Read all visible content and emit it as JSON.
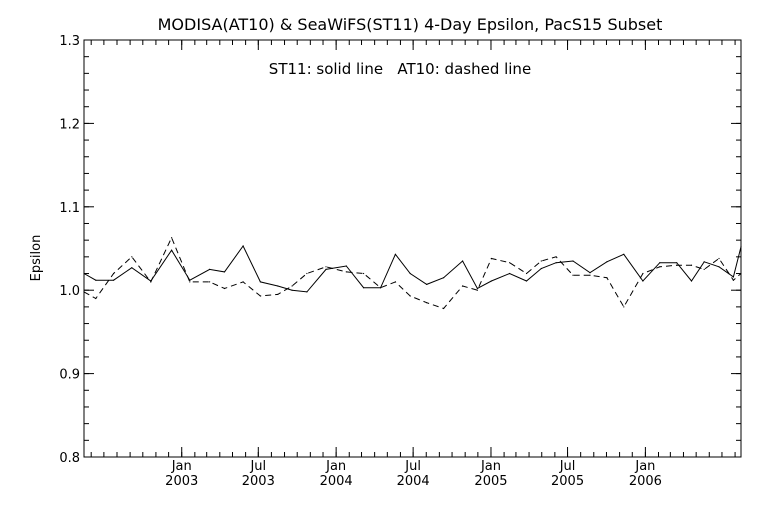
{
  "chart_data": {
    "type": "line",
    "title": "MODISA(AT10) & SeaWiFS(ST11) 4-Day Epsilon, PacS15 Subset",
    "annotation": "ST11: solid line   AT10: dashed line",
    "xlabel": "",
    "ylabel": "Epsilon",
    "ylim": [
      0.8,
      1.3
    ],
    "xlim": [
      "2002-05-15",
      "2006-08-15"
    ],
    "grid": false,
    "legend": "none",
    "y_ticks": [
      "0.8",
      "0.9",
      "1.0",
      "1.1",
      "1.2",
      "1.3"
    ],
    "x_ticks": [
      {
        "date": "2003-01-01",
        "month": "Jan",
        "year": "2003"
      },
      {
        "date": "2003-07-01",
        "month": "Jul",
        "year": "2003"
      },
      {
        "date": "2004-01-01",
        "month": "Jan",
        "year": "2004"
      },
      {
        "date": "2004-07-01",
        "month": "Jul",
        "year": "2004"
      },
      {
        "date": "2005-01-01",
        "month": "Jan",
        "year": "2005"
      },
      {
        "date": "2005-07-01",
        "month": "Jul",
        "year": "2005"
      },
      {
        "date": "2006-01-01",
        "month": "Jan",
        "year": "2006"
      }
    ],
    "series": [
      {
        "name": "ST11",
        "style": "solid",
        "points": [
          [
            "2002-05-15",
            1.02
          ],
          [
            "2002-06-12",
            1.012
          ],
          [
            "2002-07-24",
            1.012
          ],
          [
            "2002-09-05",
            1.027
          ],
          [
            "2002-10-20",
            1.011
          ],
          [
            "2002-12-08",
            1.048
          ],
          [
            "2003-01-20",
            1.012
          ],
          [
            "2003-03-08",
            1.025
          ],
          [
            "2003-04-12",
            1.022
          ],
          [
            "2003-05-26",
            1.053
          ],
          [
            "2003-07-06",
            1.01
          ],
          [
            "2003-08-16",
            1.005
          ],
          [
            "2003-09-19",
            1.0
          ],
          [
            "2003-10-24",
            0.998
          ],
          [
            "2003-12-08",
            1.025
          ],
          [
            "2004-01-25",
            1.029
          ],
          [
            "2004-03-06",
            1.003
          ],
          [
            "2004-04-15",
            1.003
          ],
          [
            "2004-05-20",
            1.043
          ],
          [
            "2004-06-24",
            1.02
          ],
          [
            "2004-08-02",
            1.007
          ],
          [
            "2004-09-11",
            1.015
          ],
          [
            "2004-10-26",
            1.035
          ],
          [
            "2004-11-30",
            1.002
          ],
          [
            "2005-01-02",
            1.011
          ],
          [
            "2005-02-14",
            1.02
          ],
          [
            "2005-03-26",
            1.011
          ],
          [
            "2005-04-30",
            1.026
          ],
          [
            "2005-06-04",
            1.033
          ],
          [
            "2005-07-14",
            1.035
          ],
          [
            "2005-08-23",
            1.021
          ],
          [
            "2005-10-02",
            1.034
          ],
          [
            "2005-11-11",
            1.043
          ],
          [
            "2005-12-26",
            1.011
          ],
          [
            "2006-02-04",
            1.033
          ],
          [
            "2006-03-16",
            1.033
          ],
          [
            "2006-04-20",
            1.011
          ],
          [
            "2006-05-20",
            1.034
          ],
          [
            "2006-06-24",
            1.028
          ],
          [
            "2006-07-28",
            1.016
          ],
          [
            "2006-08-15",
            1.052
          ]
        ]
      },
      {
        "name": "AT10",
        "style": "dashed",
        "points": [
          [
            "2002-05-15",
            0.998
          ],
          [
            "2002-06-12",
            0.99
          ],
          [
            "2002-07-24",
            1.02
          ],
          [
            "2002-09-05",
            1.04
          ],
          [
            "2002-10-20",
            1.01
          ],
          [
            "2002-12-08",
            1.063
          ],
          [
            "2003-01-20",
            1.01
          ],
          [
            "2003-03-08",
            1.01
          ],
          [
            "2003-04-12",
            1.002
          ],
          [
            "2003-05-26",
            1.01
          ],
          [
            "2003-07-06",
            0.993
          ],
          [
            "2003-08-16",
            0.995
          ],
          [
            "2003-09-19",
            1.005
          ],
          [
            "2003-10-24",
            1.02
          ],
          [
            "2003-12-08",
            1.028
          ],
          [
            "2004-01-25",
            1.022
          ],
          [
            "2004-03-06",
            1.02
          ],
          [
            "2004-04-15",
            1.003
          ],
          [
            "2004-05-20",
            1.01
          ],
          [
            "2004-06-24",
            0.993
          ],
          [
            "2004-08-02",
            0.985
          ],
          [
            "2004-09-11",
            0.978
          ],
          [
            "2004-10-26",
            1.005
          ],
          [
            "2004-11-30",
            1.0
          ],
          [
            "2005-01-02",
            1.038
          ],
          [
            "2005-02-14",
            1.033
          ],
          [
            "2005-03-26",
            1.02
          ],
          [
            "2005-04-30",
            1.035
          ],
          [
            "2005-06-04",
            1.04
          ],
          [
            "2005-07-14",
            1.018
          ],
          [
            "2005-08-23",
            1.018
          ],
          [
            "2005-10-02",
            1.015
          ],
          [
            "2005-11-11",
            0.98
          ],
          [
            "2005-12-26",
            1.02
          ],
          [
            "2006-02-04",
            1.028
          ],
          [
            "2006-03-16",
            1.03
          ],
          [
            "2006-04-20",
            1.03
          ],
          [
            "2006-05-20",
            1.025
          ],
          [
            "2006-06-24",
            1.038
          ],
          [
            "2006-07-28",
            1.012
          ],
          [
            "2006-08-15",
            1.02
          ]
        ]
      }
    ]
  }
}
